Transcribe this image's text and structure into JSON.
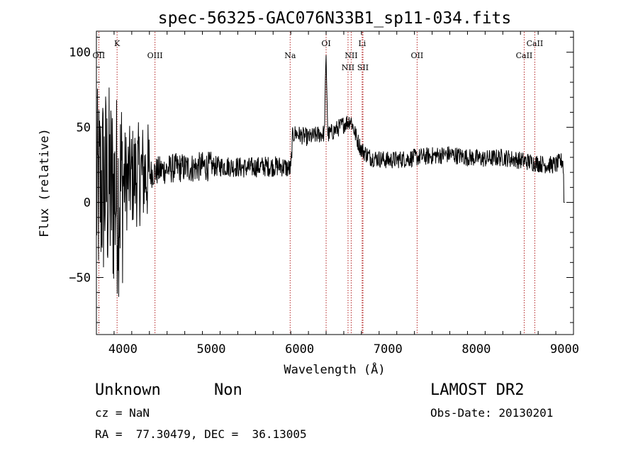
{
  "chart_data": {
    "type": "line",
    "title": "spec-56325-GAC076N33B1_sp11-034.fits",
    "xlabel": "Wavelength (Å)",
    "ylabel": "Flux (relative)",
    "xlim": [
      3700,
      9100
    ],
    "ylim": [
      -88,
      114
    ],
    "xticks": [
      4000,
      5000,
      6000,
      7000,
      8000,
      9000
    ],
    "yticks": [
      -50,
      0,
      50,
      100
    ],
    "grid": false,
    "legend": "none",
    "line_color": "#000000",
    "marker_color": "#b22222",
    "lines": [
      {
        "name": "OII",
        "x": 3727,
        "row": 2
      },
      {
        "name": "K",
        "x": 3934,
        "row": 1
      },
      {
        "name": "OIII",
        "x": 4363,
        "row": 2
      },
      {
        "name": "Na",
        "x": 5893,
        "row": 2
      },
      {
        "name": "OI",
        "x": 6300,
        "row": 1
      },
      {
        "name": "NII",
        "x": 6548,
        "row": 3
      },
      {
        "name": "NII",
        "x": 6584,
        "row": 2
      },
      {
        "name": "Li",
        "x": 6708,
        "row": 1
      },
      {
        "name": "SII",
        "x": 6717,
        "row": 3
      },
      {
        "name": "OII",
        "x": 7330,
        "row": 2
      },
      {
        "name": "CaII",
        "x": 8542,
        "row": 2
      },
      {
        "name": "CaII",
        "x": 8662,
        "row": 1
      }
    ],
    "series": [
      {
        "x": [
          3700,
          3750,
          3800,
          3850,
          3900,
          3950,
          4000,
          4100,
          4200,
          4300,
          4400,
          4500,
          4600,
          4700,
          4800,
          4900,
          5000,
          5200,
          5400,
          5600,
          5800,
          5900,
          5920,
          5950,
          6000,
          6100,
          6200,
          6280,
          6300,
          6320,
          6400,
          6500,
          6580,
          6650,
          6700,
          6800,
          7000,
          7200,
          7330,
          7500,
          7700,
          7900,
          8100,
          8300,
          8500,
          8600,
          8700,
          8800,
          8900,
          8980,
          9000
        ],
        "y": [
          5,
          10,
          12,
          10,
          6,
          6,
          14,
          17,
          19,
          19,
          21,
          22,
          23,
          23,
          23,
          24,
          24,
          24,
          23,
          24,
          24,
          22,
          44,
          46,
          45,
          43,
          45,
          46,
          98,
          45,
          48,
          52,
          55,
          42,
          35,
          30,
          28,
          29,
          30,
          31,
          32,
          30,
          29,
          30,
          28,
          27,
          26,
          25,
          25,
          28,
          0
        ]
      }
    ]
  },
  "info": {
    "object_class": "Unknown",
    "subclass": "Non",
    "cz": "cz = NaN",
    "coords": "RA =  77.30479, DEC =  36.13005",
    "survey": "LAMOST DR2",
    "obs_date": "Obs-Date: 20130201"
  }
}
